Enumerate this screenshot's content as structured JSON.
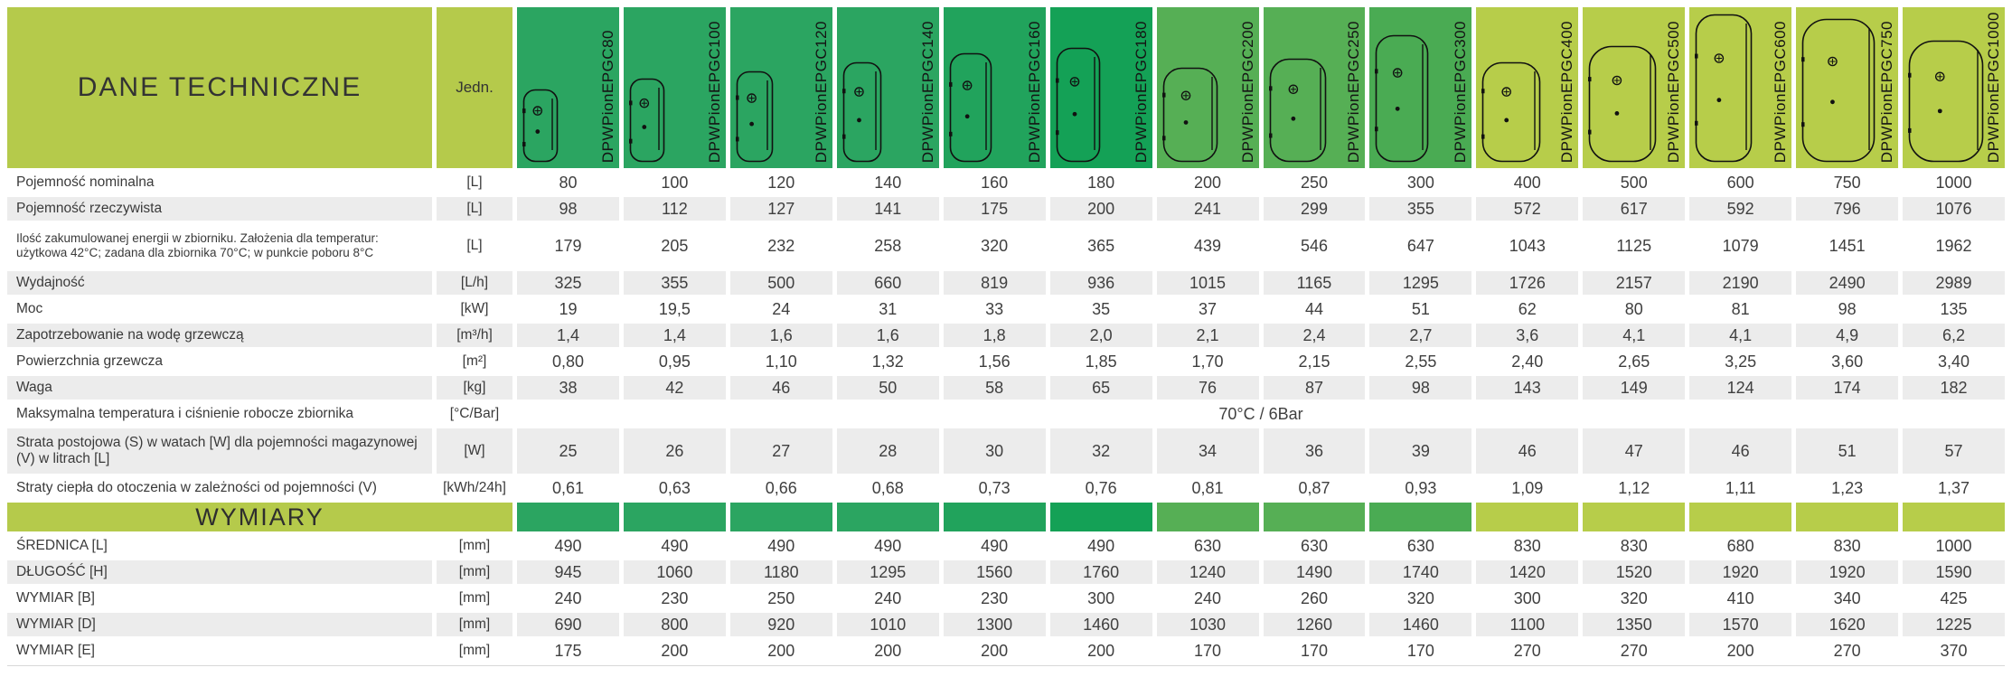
{
  "header": {
    "title": "DANE TECHNICZNE",
    "unit_label": "Jedn.",
    "columns": [
      {
        "name": "DPWPionEPGC80",
        "color": "#2ba561"
      },
      {
        "name": "DPWPionEPGC100",
        "color": "#2ba561"
      },
      {
        "name": "DPWPionEPGC120",
        "color": "#2ba561"
      },
      {
        "name": "DPWPionEPGC140",
        "color": "#2ba561"
      },
      {
        "name": "DPWPionEPGC160",
        "color": "#21a35c"
      },
      {
        "name": "DPWPionEPGC180",
        "color": "#14a156"
      },
      {
        "name": "DPWPionEPGC200",
        "color": "#56af55"
      },
      {
        "name": "DPWPionEPGC250",
        "color": "#56af55"
      },
      {
        "name": "DPWPionEPGC300",
        "color": "#4aab53"
      },
      {
        "name": "DPWPionEPGC400",
        "color": "#b7cd4a"
      },
      {
        "name": "DPWPionEPGC500",
        "color": "#b7cd4a"
      },
      {
        "name": "DPWPionEPGC600",
        "color": "#b7cd4a"
      },
      {
        "name": "DPWPionEPGC750",
        "color": "#b7cd4a"
      },
      {
        "name": "DPWPionEPGC1000",
        "color": "#b7cd4a"
      }
    ]
  },
  "colors": {
    "yellow_green": "#b5ca4b",
    "row_shade": "#ececec"
  },
  "rows": [
    {
      "label": "Pojemność nominalna",
      "unit": "[L]",
      "values": [
        "80",
        "100",
        "120",
        "140",
        "160",
        "180",
        "200",
        "250",
        "300",
        "400",
        "500",
        "600",
        "750",
        "1000"
      ]
    },
    {
      "label": "Pojemność rzeczywista",
      "unit": "[L]",
      "values": [
        "98",
        "112",
        "127",
        "141",
        "175",
        "200",
        "241",
        "299",
        "355",
        "572",
        "617",
        "592",
        "796",
        "1076"
      ]
    },
    {
      "label": "Ilość zakumulowanej energii w zbiorniku. Założenia dla temperatur: użytkowa 42°C; zadana dla zbiornika 70°C; w punkcie poboru 8°C",
      "unit": "[L]",
      "values": [
        "179",
        "205",
        "232",
        "258",
        "320",
        "365",
        "439",
        "546",
        "647",
        "1043",
        "1125",
        "1079",
        "1451",
        "1962"
      ]
    },
    {
      "label": "Wydajność",
      "unit": "[L/h]",
      "values": [
        "325",
        "355",
        "500",
        "660",
        "819",
        "936",
        "1015",
        "1165",
        "1295",
        "1726",
        "2157",
        "2190",
        "2490",
        "2989"
      ]
    },
    {
      "label": "Moc",
      "unit": "[kW]",
      "values": [
        "19",
        "19,5",
        "24",
        "31",
        "33",
        "35",
        "37",
        "44",
        "51",
        "62",
        "80",
        "81",
        "98",
        "135"
      ]
    },
    {
      "label": "Zapotrzebowanie na wodę grzewczą",
      "unit": "[m³/h]",
      "values": [
        "1,4",
        "1,4",
        "1,6",
        "1,6",
        "1,8",
        "2,0",
        "2,1",
        "2,4",
        "2,7",
        "3,6",
        "4,1",
        "4,1",
        "4,9",
        "6,2"
      ]
    },
    {
      "label": "Powierzchnia grzewcza",
      "unit": "[m²]",
      "values": [
        "0,80",
        "0,95",
        "1,10",
        "1,32",
        "1,56",
        "1,85",
        "1,70",
        "2,15",
        "2,55",
        "2,40",
        "2,65",
        "3,25",
        "3,60",
        "3,40"
      ]
    },
    {
      "label": "Waga",
      "unit": "[kg]",
      "values": [
        "38",
        "42",
        "46",
        "50",
        "58",
        "65",
        "76",
        "87",
        "98",
        "143",
        "149",
        "124",
        "174",
        "182"
      ]
    },
    {
      "label": "Maksymalna temperatura i ciśnienie robocze zbiornika",
      "unit": "[°C/Bar]",
      "merged_value": "70°C / 6Bar"
    },
    {
      "label": "Strata postojowa (S) w watach [W] dla pojemności magazynowej (V) w litrach [L]",
      "unit": "[W]",
      "values": [
        "25",
        "26",
        "27",
        "28",
        "30",
        "32",
        "34",
        "36",
        "39",
        "46",
        "47",
        "46",
        "51",
        "57"
      ]
    },
    {
      "label": "Straty ciepła do otoczenia w zależności od pojemności (V)",
      "unit": "[kWh/24h]",
      "values": [
        "0,61",
        "0,63",
        "0,66",
        "0,68",
        "0,73",
        "0,76",
        "0,81",
        "0,87",
        "0,93",
        "1,09",
        "1,12",
        "1,11",
        "1,23",
        "1,37"
      ]
    }
  ],
  "dimensions_section": {
    "title": "WYMIARY",
    "rows": [
      {
        "label": "ŚREDNICA [L]",
        "unit": "[mm]",
        "values": [
          "490",
          "490",
          "490",
          "490",
          "490",
          "490",
          "630",
          "630",
          "630",
          "830",
          "830",
          "680",
          "830",
          "1000"
        ]
      },
      {
        "label": "DŁUGOŚĆ [H]",
        "unit": "[mm]",
        "values": [
          "945",
          "1060",
          "1180",
          "1295",
          "1560",
          "1760",
          "1240",
          "1490",
          "1740",
          "1420",
          "1520",
          "1920",
          "1920",
          "1590"
        ]
      },
      {
        "label": "WYMIAR [B]",
        "unit": "[mm]",
        "values": [
          "240",
          "230",
          "250",
          "240",
          "230",
          "300",
          "240",
          "260",
          "320",
          "300",
          "320",
          "410",
          "340",
          "425"
        ]
      },
      {
        "label": "WYMIAR [D]",
        "unit": "[mm]",
        "values": [
          "690",
          "800",
          "920",
          "1010",
          "1300",
          "1460",
          "1030",
          "1260",
          "1460",
          "1100",
          "1350",
          "1570",
          "1620",
          "1225"
        ]
      },
      {
        "label": "WYMIAR [E]",
        "unit": "[mm]",
        "values": [
          "175",
          "200",
          "200",
          "200",
          "200",
          "200",
          "170",
          "170",
          "170",
          "270",
          "270",
          "200",
          "270",
          "370"
        ]
      }
    ]
  }
}
